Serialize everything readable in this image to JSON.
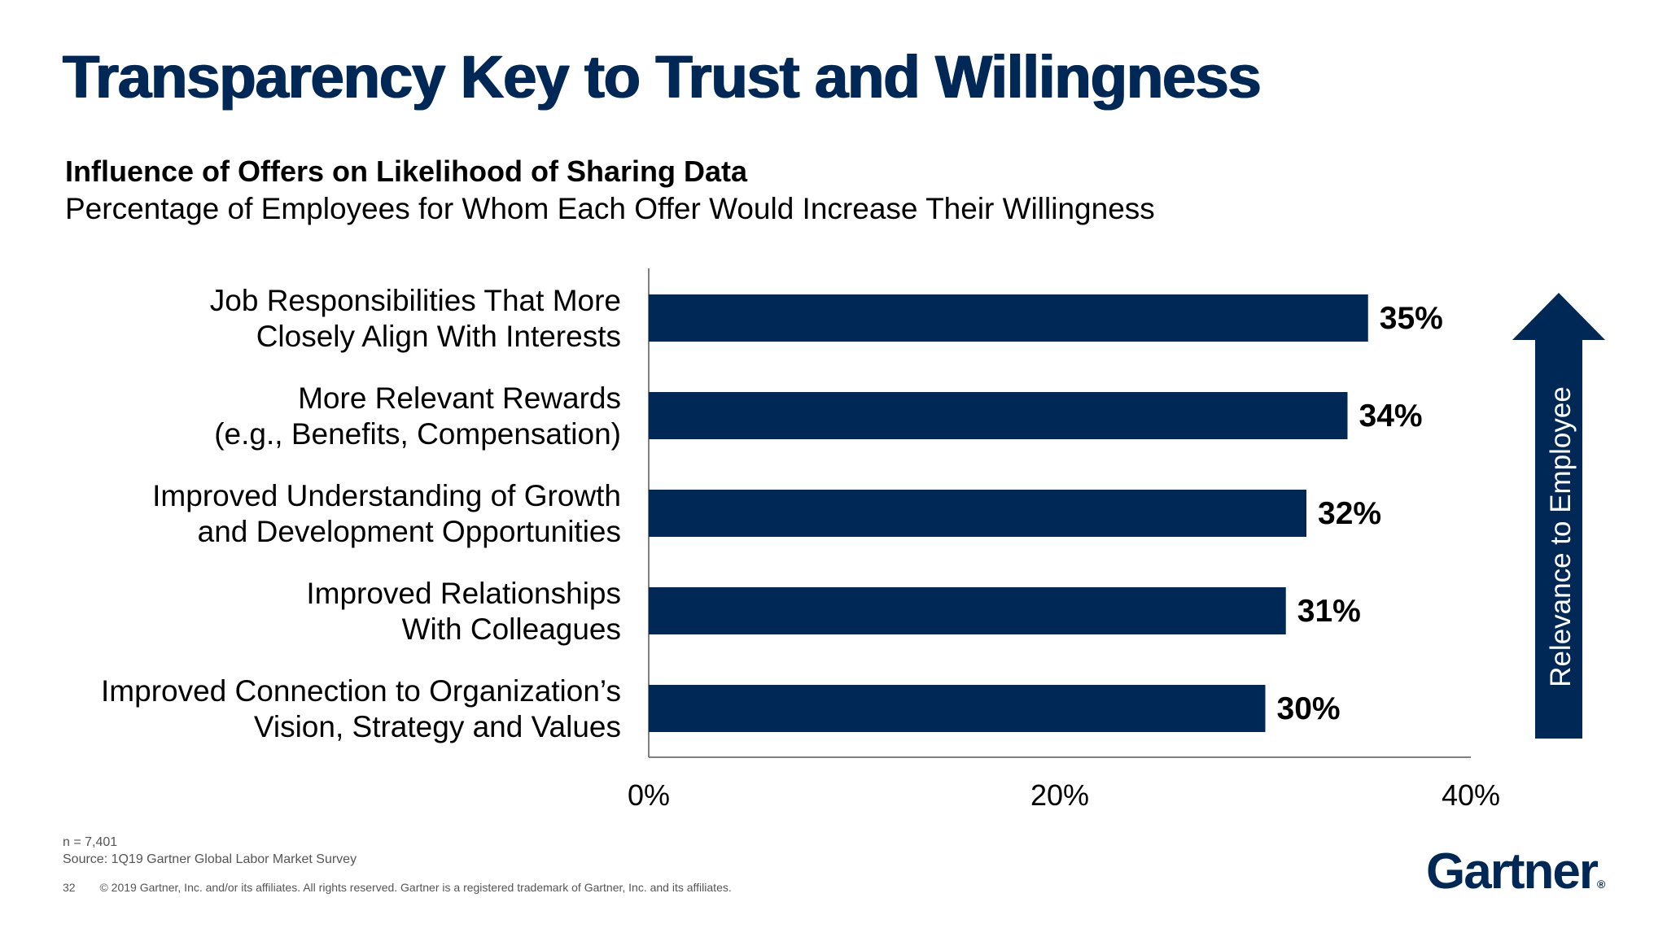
{
  "header": {
    "title": "Transparency Key to Trust and Willingness",
    "subtitle": "Influence of Offers on Likelihood of Sharing Data",
    "subtitle2": "Percentage of Employees for Whom Each Offer Would Increase Their Willingness"
  },
  "chart_data": {
    "type": "bar",
    "orientation": "horizontal",
    "categories": [
      [
        "Job Responsibilities That More",
        "Closely Align With Interests"
      ],
      [
        "More Relevant Rewards",
        "(e.g., Benefits, Compensation)"
      ],
      [
        "Improved Understanding of Growth",
        "and Development Opportunities"
      ],
      [
        "Improved Relationships",
        "With Colleagues"
      ],
      [
        "Improved Connection to Organization’s",
        "Vision, Strategy and Values"
      ]
    ],
    "values": [
      35,
      34,
      32,
      31,
      30
    ],
    "value_labels": [
      "35%",
      "34%",
      "32%",
      "31%",
      "30%"
    ],
    "xlim": [
      0,
      40
    ],
    "x_ticks": [
      0,
      20,
      40
    ],
    "x_tick_labels": [
      "0%",
      "20%",
      "40%"
    ],
    "xlabel": "",
    "ylabel": "",
    "grid": false,
    "bar_color": "#002856"
  },
  "arrow": {
    "label": "Relevance to Employee",
    "color": "#002856"
  },
  "footer": {
    "n": "n = 7,401",
    "source": "Source: 1Q19 Gartner Global Labor Market Survey",
    "page": "32",
    "copyright": "© 2019 Gartner, Inc. and/or its affiliates. All rights reserved. Gartner is a registered trademark of Gartner, Inc. and its affiliates.",
    "logo": "Gartner",
    "logo_mark": "®"
  }
}
